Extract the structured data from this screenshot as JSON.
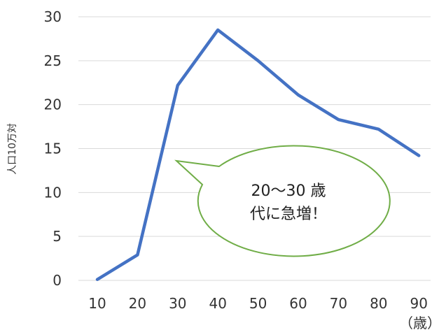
{
  "chart_data": {
    "type": "line",
    "x": [
      10,
      20,
      30,
      40,
      50,
      60,
      70,
      80,
      90
    ],
    "categories": [
      "10",
      "20",
      "30",
      "40",
      "50",
      "60",
      "70",
      "80",
      "90"
    ],
    "series": [
      {
        "values": [
          0.1,
          2.9,
          22.2,
          28.5,
          25.0,
          21.1,
          18.3,
          17.2,
          14.2
        ]
      }
    ],
    "xlabel": "",
    "x_unit": "（歳）",
    "ylabel": "人口10万対",
    "ylim": [
      0,
      30
    ],
    "yticks": [
      0,
      5,
      10,
      15,
      20,
      25,
      30
    ],
    "grid": true,
    "legend": "none",
    "colors": {
      "line": "#4472C4",
      "grid": "#D9D9D9",
      "callout_border": "#70AD47",
      "callout_fill": "#FFFFFF"
    },
    "annotation": {
      "line1": "20～30 歳",
      "line2": "代に急増！"
    }
  }
}
